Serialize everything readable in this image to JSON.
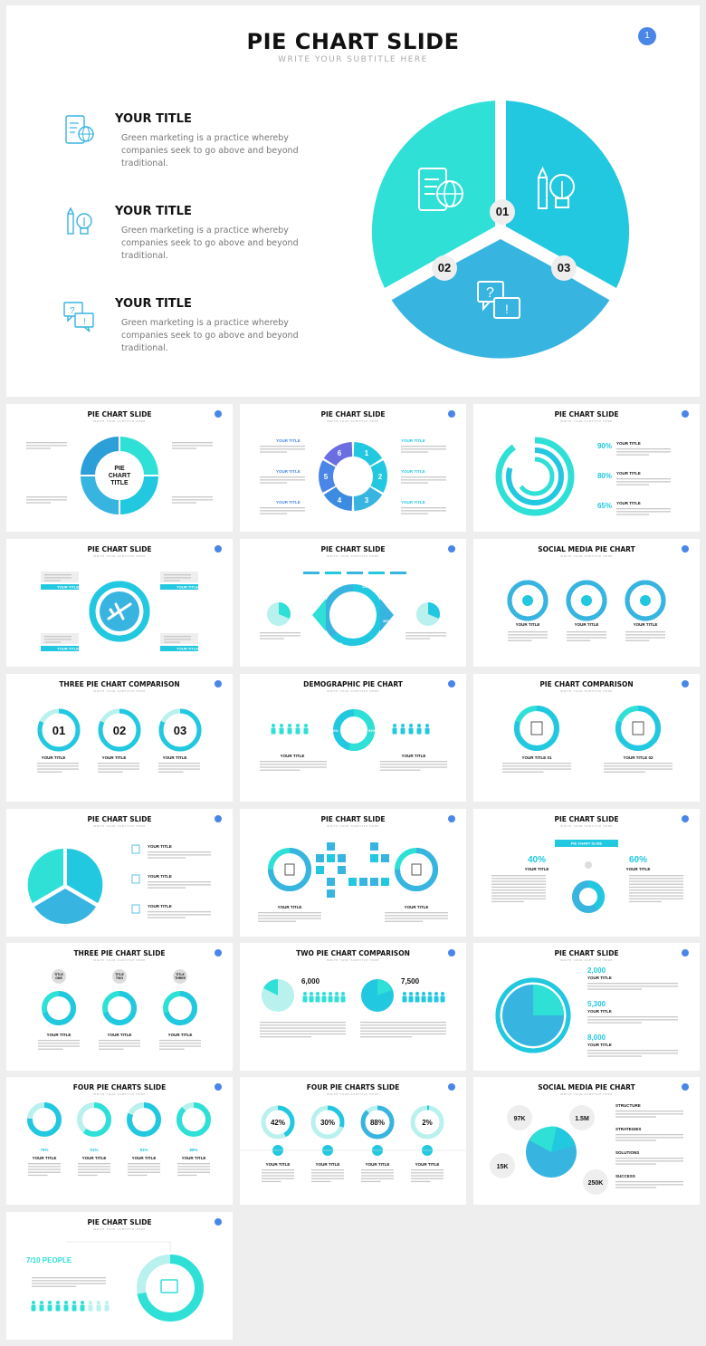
{
  "colors": {
    "teal": "#2ee0d6",
    "cyan": "#22c8e0",
    "blue": "#38b4e0",
    "accent": "#4a86e8"
  },
  "hero": {
    "title": "PIE CHART SLIDE",
    "subtitle": "WRITE YOUR SUBTITLE HERE",
    "page": "1",
    "items": [
      {
        "title": "YOUR TITLE",
        "text": "Green marketing is a practice whereby companies seek to go above and beyond traditional.",
        "icon": "phone-globe-icon"
      },
      {
        "title": "YOUR TITLE",
        "text": "Green marketing is a practice whereby companies seek to go above and beyond traditional.",
        "icon": "pencil-bulb-icon"
      },
      {
        "title": "YOUR TITLE",
        "text": "Green marketing is a practice whereby companies seek to go above and beyond traditional.",
        "icon": "question-chat-icon"
      }
    ],
    "pie_labels": [
      "01",
      "02",
      "03"
    ]
  },
  "thumbs": [
    {
      "title": "PIE CHART SLIDE",
      "sub": "WRITE YOUR SUBTITLE HERE",
      "center": [
        "PIE",
        "CHART",
        "TITLE"
      ]
    },
    {
      "title": "PIE CHART SLIDE",
      "sub": "WRITE YOUR SUBTITLE HERE",
      "nums": [
        "1",
        "2",
        "3",
        "4",
        "5",
        "6"
      ],
      "label": "YOUR TITLE"
    },
    {
      "title": "PIE CHART SLIDE",
      "sub": "WRITE YOUR SUBTITLE HERE",
      "pcts": [
        "90%",
        "80%",
        "65%"
      ],
      "label": "YOUR TITLE"
    },
    {
      "title": "PIE CHART SLIDE",
      "sub": "WRITE YOUR SUBTITLE HERE",
      "label": "YOUR TITLE"
    },
    {
      "title": "PIE CHART SLIDE",
      "sub": "WRITE YOUR SUBTITLE HERE",
      "pcts": [
        "13%",
        "36%",
        "13%",
        "9%"
      ]
    },
    {
      "title": "SOCIAL MEDIA PIE CHART",
      "sub": "WRITE YOUR SUBTITLE HERE",
      "icons": [
        "twitter-icon",
        "facebook-icon",
        "pinterest-icon"
      ],
      "label": "YOUR TITLE"
    },
    {
      "title": "THREE PIE CHART COMPARISON",
      "sub": "WRITE YOUR SUBTITLE HERE",
      "nums": [
        "01",
        "02",
        "03"
      ],
      "label": "YOUR TITLE"
    },
    {
      "title": "DEMOGRAPHIC PIE CHART",
      "sub": "WRITE YOUR SUBTITLE HERE",
      "pcts": [
        "46%",
        "54%"
      ],
      "label": "YOUR TITLE"
    },
    {
      "title": "PIE CHART COMPARISON",
      "sub": "WRITE YOUR SUBTITLE HERE",
      "labels": [
        "YOUR TITLE 01",
        "YOUR TITLE 02"
      ]
    },
    {
      "title": "PIE CHART SLIDE",
      "sub": "WRITE YOUR SUBTITLE HERE",
      "label": "YOUR TITLE"
    },
    {
      "title": "PIE CHART SLIDE",
      "sub": "WRITE YOUR SUBTITLE HERE",
      "label": "YOUR TITLE"
    },
    {
      "title": "PIE CHART SLIDE",
      "sub": "WRITE YOUR SUBTITLE HERE",
      "pcts": [
        "40%",
        "60%"
      ],
      "banner": "PIE CHART SLIDE",
      "label": "YOUR TITLE"
    },
    {
      "title": "THREE PIE CHART SLIDE",
      "sub": "WRITE YOUR SUBTITLE HERE",
      "tags": [
        "TITLE ONE",
        "TITLE TWO",
        "TITLE THREE"
      ],
      "label": "YOUR TITLE"
    },
    {
      "title": "TWO PIE CHART COMPARISON",
      "sub": "WRITE YOUR SUBTITLE HERE",
      "vals": [
        "6,000",
        "7,500"
      ]
    },
    {
      "title": "PIE CHART SLIDE",
      "sub": "WRITE YOUR SUBTITLE HERE",
      "vals": [
        "2,000",
        "5,300",
        "8,000"
      ],
      "label": "YOUR TITLE"
    },
    {
      "title": "FOUR PIE CHARTS SLIDE",
      "sub": "WRITE YOUR SUBTITLE HERE",
      "pcts": [
        "76%",
        "61%",
        "81%",
        "88%"
      ],
      "label": "YOUR TITLE"
    },
    {
      "title": "FOUR PIE CHARTS SLIDE",
      "sub": "WRITE YOUR SUBTITLE HERE",
      "pcts": [
        "42%",
        "30%",
        "88%",
        "2%"
      ],
      "label": "YOUR TITLE"
    },
    {
      "title": "SOCIAL MEDIA PIE CHART",
      "sub": "WRITE YOUR SUBTITLE HERE",
      "vals": [
        "97K",
        "1.5M",
        "15K",
        "250K"
      ],
      "labels": [
        "STRUCTURE",
        "STRATEGIES",
        "SOLUTIONS",
        "SUCCESS"
      ]
    },
    {
      "title": "PIE CHART SLIDE",
      "sub": "WRITE YOUR SUBTITLE HERE",
      "label": "7/10 PEOPLE"
    }
  ]
}
